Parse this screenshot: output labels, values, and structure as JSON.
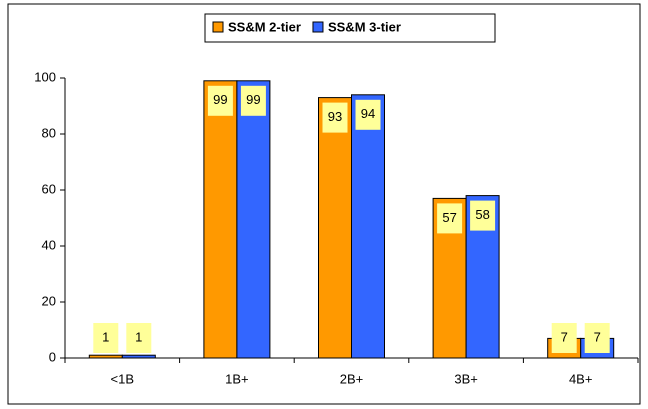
{
  "chart_data": {
    "type": "bar",
    "categories": [
      "<1B",
      "1B+",
      "2B+",
      "3B+",
      "4B+"
    ],
    "series": [
      {
        "name": "SS&M 2-tier",
        "color": "#ff9900",
        "values": [
          1,
          99,
          93,
          57,
          7
        ]
      },
      {
        "name": "SS&M 3-tier",
        "color": "#3366ff",
        "values": [
          1,
          99,
          94,
          58,
          7
        ]
      }
    ],
    "ylim": [
      0,
      100
    ],
    "yticks": [
      0,
      20,
      40,
      60,
      80,
      100
    ],
    "grid": false,
    "legend": "top"
  }
}
